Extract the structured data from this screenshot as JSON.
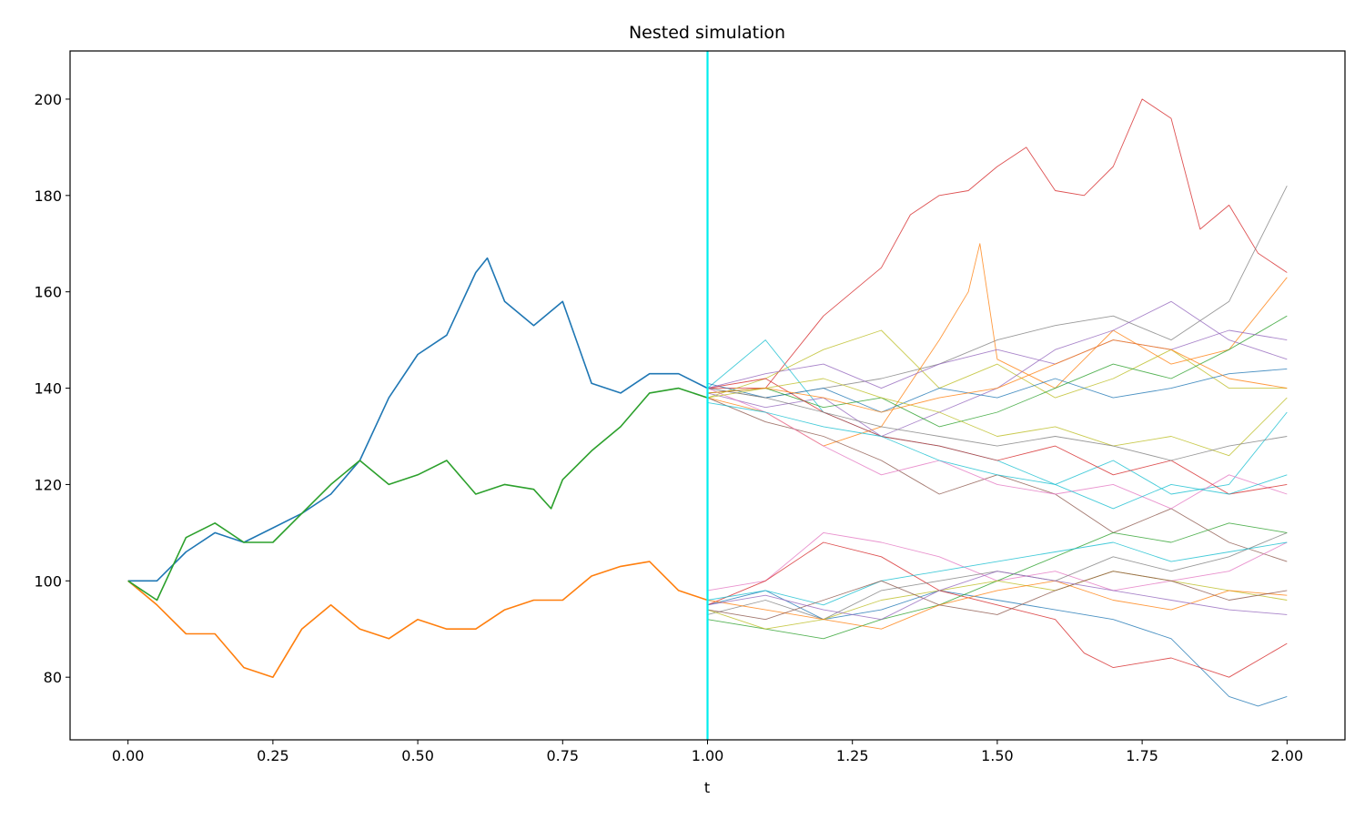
{
  "chart_data": {
    "type": "line",
    "title": "Nested simulation",
    "xlabel": "t",
    "ylabel": "",
    "xlim": [
      -0.1,
      2.1
    ],
    "ylim": [
      67,
      210
    ],
    "x_ticks": [
      0.0,
      0.25,
      0.5,
      0.75,
      1.0,
      1.25,
      1.5,
      1.75,
      2.0
    ],
    "x_tick_labels": [
      "0.00",
      "0.25",
      "0.50",
      "0.75",
      "1.00",
      "1.25",
      "1.50",
      "1.75",
      "2.00"
    ],
    "y_ticks": [
      80,
      100,
      120,
      140,
      160,
      180,
      200
    ],
    "y_tick_labels": [
      "80",
      "100",
      "120",
      "140",
      "160",
      "180",
      "200"
    ],
    "grid": false,
    "legend": "none",
    "vertical_line": {
      "x": 1.0,
      "color": "#00eeee"
    },
    "series": [
      {
        "color": "#1f77b4",
        "x": [
          0.0,
          0.05,
          0.1,
          0.15,
          0.2,
          0.25,
          0.3,
          0.35,
          0.4,
          0.45,
          0.5,
          0.55,
          0.6,
          0.62,
          0.65,
          0.7,
          0.75,
          0.8,
          0.85,
          0.9,
          0.95,
          1.0
        ],
        "y": [
          100,
          100,
          106,
          110,
          108,
          111,
          114,
          118,
          125,
          138,
          147,
          151,
          164,
          167,
          158,
          153,
          158,
          141,
          139,
          143,
          143,
          140
        ]
      },
      {
        "color": "#ff7f0e",
        "x": [
          0.0,
          0.05,
          0.1,
          0.15,
          0.2,
          0.25,
          0.3,
          0.35,
          0.4,
          0.45,
          0.5,
          0.55,
          0.6,
          0.65,
          0.7,
          0.75,
          0.8,
          0.85,
          0.9,
          0.95,
          1.0
        ],
        "y": [
          100,
          95,
          89,
          89,
          82,
          80,
          90,
          95,
          90,
          88,
          92,
          90,
          90,
          94,
          96,
          96,
          101,
          103,
          104,
          98,
          96
        ]
      },
      {
        "color": "#2ca02c",
        "x": [
          0.0,
          0.05,
          0.1,
          0.15,
          0.2,
          0.25,
          0.3,
          0.35,
          0.4,
          0.45,
          0.5,
          0.55,
          0.6,
          0.65,
          0.7,
          0.73,
          0.75,
          0.8,
          0.85,
          0.9,
          0.95,
          1.0
        ],
        "y": [
          100,
          96,
          109,
          112,
          108,
          108,
          114,
          120,
          125,
          120,
          122,
          125,
          118,
          120,
          119,
          115,
          121,
          127,
          132,
          139,
          140,
          138
        ]
      },
      {
        "color": "#d62728",
        "x": [
          1.0,
          1.1,
          1.2,
          1.3,
          1.35,
          1.4,
          1.45,
          1.5,
          1.55,
          1.6,
          1.65,
          1.7,
          1.75,
          1.8,
          1.85,
          1.9,
          1.95,
          2.0
        ],
        "y": [
          140,
          140,
          155,
          165,
          176,
          180,
          181,
          186,
          190,
          181,
          180,
          186,
          200,
          196,
          173,
          178,
          168,
          164
        ]
      },
      {
        "color": "#7f7f7f",
        "x": [
          1.0,
          1.1,
          1.2,
          1.3,
          1.4,
          1.5,
          1.6,
          1.7,
          1.8,
          1.9,
          2.0
        ],
        "y": [
          140,
          138,
          140,
          142,
          145,
          150,
          153,
          155,
          150,
          158,
          182
        ]
      },
      {
        "color": "#ff7f0e",
        "x": [
          1.0,
          1.1,
          1.2,
          1.3,
          1.4,
          1.45,
          1.47,
          1.5,
          1.6,
          1.7,
          1.8,
          1.9,
          2.0
        ],
        "y": [
          138,
          135,
          128,
          132,
          150,
          160,
          170,
          146,
          140,
          152,
          145,
          148,
          163
        ]
      },
      {
        "color": "#17becf",
        "x": [
          1.0,
          1.1,
          1.2,
          1.3,
          1.4,
          1.5,
          1.6,
          1.7,
          1.8,
          1.9,
          2.0
        ],
        "y": [
          140,
          150,
          135,
          130,
          128,
          125,
          120,
          125,
          118,
          120,
          135
        ]
      },
      {
        "color": "#bcbd22",
        "x": [
          1.0,
          1.1,
          1.2,
          1.3,
          1.4,
          1.5,
          1.6,
          1.7,
          1.8,
          1.9,
          2.0
        ],
        "y": [
          138,
          142,
          148,
          152,
          140,
          145,
          138,
          142,
          148,
          140,
          140
        ]
      },
      {
        "color": "#9467bd",
        "x": [
          1.0,
          1.1,
          1.2,
          1.3,
          1.4,
          1.5,
          1.6,
          1.7,
          1.8,
          1.9,
          2.0
        ],
        "y": [
          139,
          136,
          138,
          130,
          135,
          140,
          148,
          152,
          158,
          150,
          146
        ]
      },
      {
        "color": "#8c564b",
        "x": [
          1.0,
          1.1,
          1.2,
          1.3,
          1.4,
          1.5,
          1.6,
          1.7,
          1.8,
          1.9,
          2.0
        ],
        "y": [
          138,
          133,
          130,
          125,
          118,
          122,
          118,
          110,
          115,
          108,
          104
        ]
      },
      {
        "color": "#e377c2",
        "x": [
          1.0,
          1.1,
          1.2,
          1.3,
          1.4,
          1.5,
          1.6,
          1.7,
          1.8,
          1.9,
          2.0
        ],
        "y": [
          140,
          135,
          128,
          122,
          125,
          120,
          118,
          120,
          115,
          122,
          118
        ]
      },
      {
        "color": "#1f77b4",
        "x": [
          1.0,
          1.1,
          1.2,
          1.3,
          1.4,
          1.5,
          1.6,
          1.7,
          1.8,
          1.9,
          2.0
        ],
        "y": [
          141,
          138,
          140,
          135,
          140,
          138,
          142,
          138,
          140,
          143,
          144
        ]
      },
      {
        "color": "#2ca02c",
        "x": [
          1.0,
          1.1,
          1.2,
          1.3,
          1.4,
          1.5,
          1.6,
          1.7,
          1.8,
          1.9,
          2.0
        ],
        "y": [
          139,
          140,
          136,
          138,
          132,
          135,
          140,
          145,
          142,
          148,
          155
        ]
      },
      {
        "color": "#d62728",
        "x": [
          1.0,
          1.1,
          1.2,
          1.3,
          1.4,
          1.5,
          1.6,
          1.7,
          1.8,
          1.9,
          2.0
        ],
        "y": [
          140,
          142,
          135,
          130,
          128,
          125,
          128,
          122,
          125,
          118,
          120
        ]
      },
      {
        "color": "#bcbd22",
        "x": [
          1.0,
          1.1,
          1.2,
          1.3,
          1.4,
          1.5,
          1.6,
          1.7,
          1.8,
          1.9,
          2.0
        ],
        "y": [
          138,
          140,
          142,
          138,
          135,
          130,
          132,
          128,
          130,
          126,
          138
        ]
      },
      {
        "color": "#7f7f7f",
        "x": [
          1.0,
          1.1,
          1.2,
          1.3,
          1.4,
          1.5,
          1.6,
          1.7,
          1.8,
          1.9,
          2.0
        ],
        "y": [
          140,
          138,
          135,
          132,
          130,
          128,
          130,
          128,
          125,
          128,
          130
        ]
      },
      {
        "color": "#17becf",
        "x": [
          1.0,
          1.1,
          1.2,
          1.3,
          1.4,
          1.5,
          1.6,
          1.7,
          1.8,
          1.9,
          2.0
        ],
        "y": [
          137,
          135,
          132,
          130,
          125,
          122,
          120,
          115,
          120,
          118,
          122
        ]
      },
      {
        "color": "#9467bd",
        "x": [
          1.0,
          1.1,
          1.2,
          1.3,
          1.4,
          1.5,
          1.6,
          1.7,
          1.8,
          1.9,
          2.0
        ],
        "y": [
          140,
          143,
          145,
          140,
          145,
          148,
          145,
          150,
          148,
          152,
          150
        ]
      },
      {
        "color": "#ff7f0e",
        "x": [
          1.0,
          1.1,
          1.2,
          1.3,
          1.4,
          1.5,
          1.6,
          1.7,
          1.8,
          1.9,
          2.0
        ],
        "y": [
          139,
          140,
          138,
          135,
          138,
          140,
          145,
          150,
          148,
          142,
          140
        ]
      },
      {
        "color": "#e377c2",
        "x": [
          1.0,
          1.1,
          1.2,
          1.3,
          1.4,
          1.5,
          1.6,
          1.7,
          1.8,
          1.9,
          2.0
        ],
        "y": [
          98,
          100,
          110,
          108,
          105,
          100,
          102,
          98,
          100,
          102,
          108
        ]
      },
      {
        "color": "#1f77b4",
        "x": [
          1.0,
          1.1,
          1.2,
          1.3,
          1.4,
          1.5,
          1.6,
          1.7,
          1.8,
          1.85,
          1.9,
          1.95,
          2.0
        ],
        "y": [
          95,
          98,
          92,
          94,
          98,
          96,
          94,
          92,
          88,
          82,
          76,
          74,
          76
        ]
      },
      {
        "color": "#d62728",
        "x": [
          1.0,
          1.1,
          1.2,
          1.3,
          1.4,
          1.5,
          1.6,
          1.65,
          1.7,
          1.8,
          1.9,
          2.0
        ],
        "y": [
          95,
          100,
          108,
          105,
          98,
          95,
          92,
          85,
          82,
          84,
          80,
          87
        ]
      },
      {
        "color": "#7f7f7f",
        "x": [
          1.0,
          1.1,
          1.2,
          1.3,
          1.4,
          1.5,
          1.6,
          1.7,
          1.8,
          1.9,
          2.0
        ],
        "y": [
          93,
          96,
          92,
          98,
          100,
          102,
          100,
          105,
          102,
          105,
          110
        ]
      },
      {
        "color": "#2ca02c",
        "x": [
          1.0,
          1.1,
          1.2,
          1.3,
          1.4,
          1.5,
          1.6,
          1.7,
          1.8,
          1.9,
          2.0
        ],
        "y": [
          92,
          90,
          88,
          92,
          95,
          100,
          105,
          110,
          108,
          112,
          110
        ]
      },
      {
        "color": "#bcbd22",
        "x": [
          1.0,
          1.1,
          1.2,
          1.3,
          1.4,
          1.5,
          1.6,
          1.7,
          1.8,
          1.9,
          2.0
        ],
        "y": [
          94,
          90,
          92,
          96,
          98,
          100,
          98,
          102,
          100,
          98,
          96
        ]
      },
      {
        "color": "#ff7f0e",
        "x": [
          1.0,
          1.1,
          1.2,
          1.3,
          1.4,
          1.5,
          1.6,
          1.7,
          1.8,
          1.9,
          2.0
        ],
        "y": [
          96,
          94,
          92,
          90,
          95,
          98,
          100,
          96,
          94,
          98,
          97
        ]
      },
      {
        "color": "#17becf",
        "x": [
          1.0,
          1.1,
          1.2,
          1.3,
          1.4,
          1.5,
          1.6,
          1.7,
          1.8,
          1.9,
          2.0
        ],
        "y": [
          96,
          98,
          95,
          100,
          102,
          104,
          106,
          108,
          104,
          106,
          108
        ]
      },
      {
        "color": "#8c564b",
        "x": [
          1.0,
          1.1,
          1.2,
          1.3,
          1.4,
          1.5,
          1.6,
          1.7,
          1.8,
          1.9,
          2.0
        ],
        "y": [
          94,
          92,
          96,
          100,
          95,
          93,
          98,
          102,
          100,
          96,
          98
        ]
      },
      {
        "color": "#9467bd",
        "x": [
          1.0,
          1.1,
          1.2,
          1.3,
          1.4,
          1.5,
          1.6,
          1.7,
          1.8,
          1.9,
          2.0
        ],
        "y": [
          95,
          97,
          94,
          92,
          98,
          102,
          100,
          98,
          96,
          94,
          93
        ]
      }
    ]
  }
}
